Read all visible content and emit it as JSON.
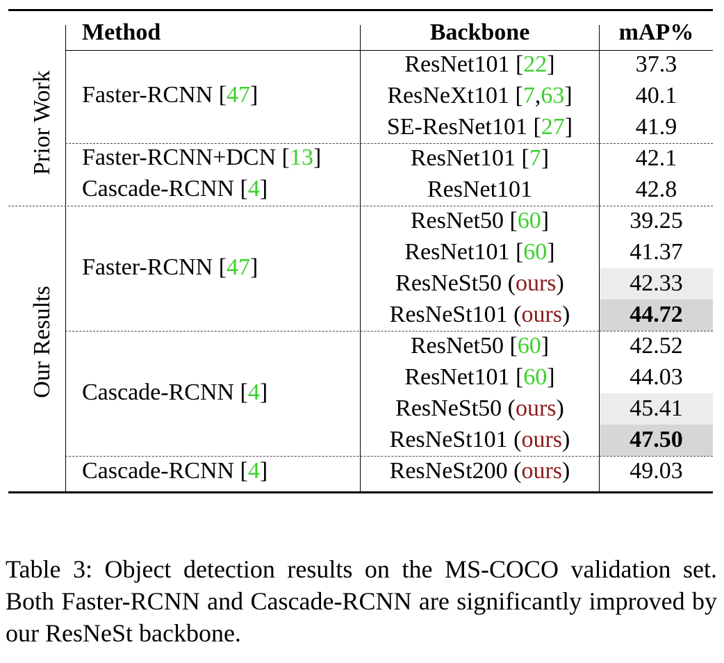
{
  "table": {
    "headers": {
      "method": "Method",
      "backbone": "Backbone",
      "map": "mAP%"
    },
    "groups": {
      "prior": "Prior Work",
      "ours": "Our Results"
    },
    "methods": {
      "m1": {
        "name": "Faster-RCNN [",
        "cite": "47",
        "close": "]"
      },
      "m2": {
        "name": "Faster-RCNN+DCN [",
        "cite": "13",
        "close": "]"
      },
      "m3": {
        "name": "Cascade-RCNN [",
        "cite": "4",
        "close": "]"
      },
      "m4": {
        "name": "Faster-RCNN [",
        "cite": "47",
        "close": "]"
      },
      "m5": {
        "name": "Cascade-RCNN [",
        "cite": "4",
        "close": "]"
      },
      "m6": {
        "name": "Cascade-RCNN [",
        "cite": "4",
        "close": "]"
      }
    },
    "rows": [
      {
        "backbone": "ResNet101 [",
        "cite": "22",
        "close": "]",
        "map": "37.3"
      },
      {
        "backbone": "ResNeXt101 [",
        "cite": "7",
        "sep": ",",
        "cite2": "63",
        "close": "]",
        "map": "40.1"
      },
      {
        "backbone": "SE-ResNet101 [",
        "cite": "27",
        "close": "]",
        "map": "41.9"
      },
      {
        "backbone": "ResNet101 [",
        "cite": "7",
        "close": "]",
        "map": "42.1"
      },
      {
        "backbone": "ResNet101",
        "map": "42.8"
      },
      {
        "backbone": "ResNet50 [",
        "cite": "60",
        "close": "]",
        "map": "39.25"
      },
      {
        "backbone": "ResNet101 [",
        "cite": "60",
        "close": "]",
        "map": "41.37"
      },
      {
        "backbone": "ResNeSt50 (",
        "ours": "ours",
        "close": ")",
        "map": "42.33"
      },
      {
        "backbone": "ResNeSt101 (",
        "ours": "ours",
        "close": ")",
        "map": "44.72"
      },
      {
        "backbone": "ResNet50 [",
        "cite": "60",
        "close": "]",
        "map": "42.52"
      },
      {
        "backbone": "ResNet101 [",
        "cite": "60",
        "close": "]",
        "map": "44.03"
      },
      {
        "backbone": "ResNeSt50 (",
        "ours": "ours",
        "close": ")",
        "map": "45.41"
      },
      {
        "backbone": "ResNeSt101 (",
        "ours": "ours",
        "close": ")",
        "map": "47.50"
      },
      {
        "backbone": "ResNeSt200 (",
        "ours": "ours",
        "close": ")",
        "map": "49.03"
      }
    ]
  },
  "caption": "Table 3: Object detection results on the MS-COCO validation set. Both Faster-RCNN and Cascade-RCNN are significantly improved by our ResNeSt backbone.",
  "colors": {
    "citation": "#3bd02c",
    "ours": "#8b1a1a",
    "shade_light": "#ececec",
    "shade_dark": "#d6d6d6"
  }
}
